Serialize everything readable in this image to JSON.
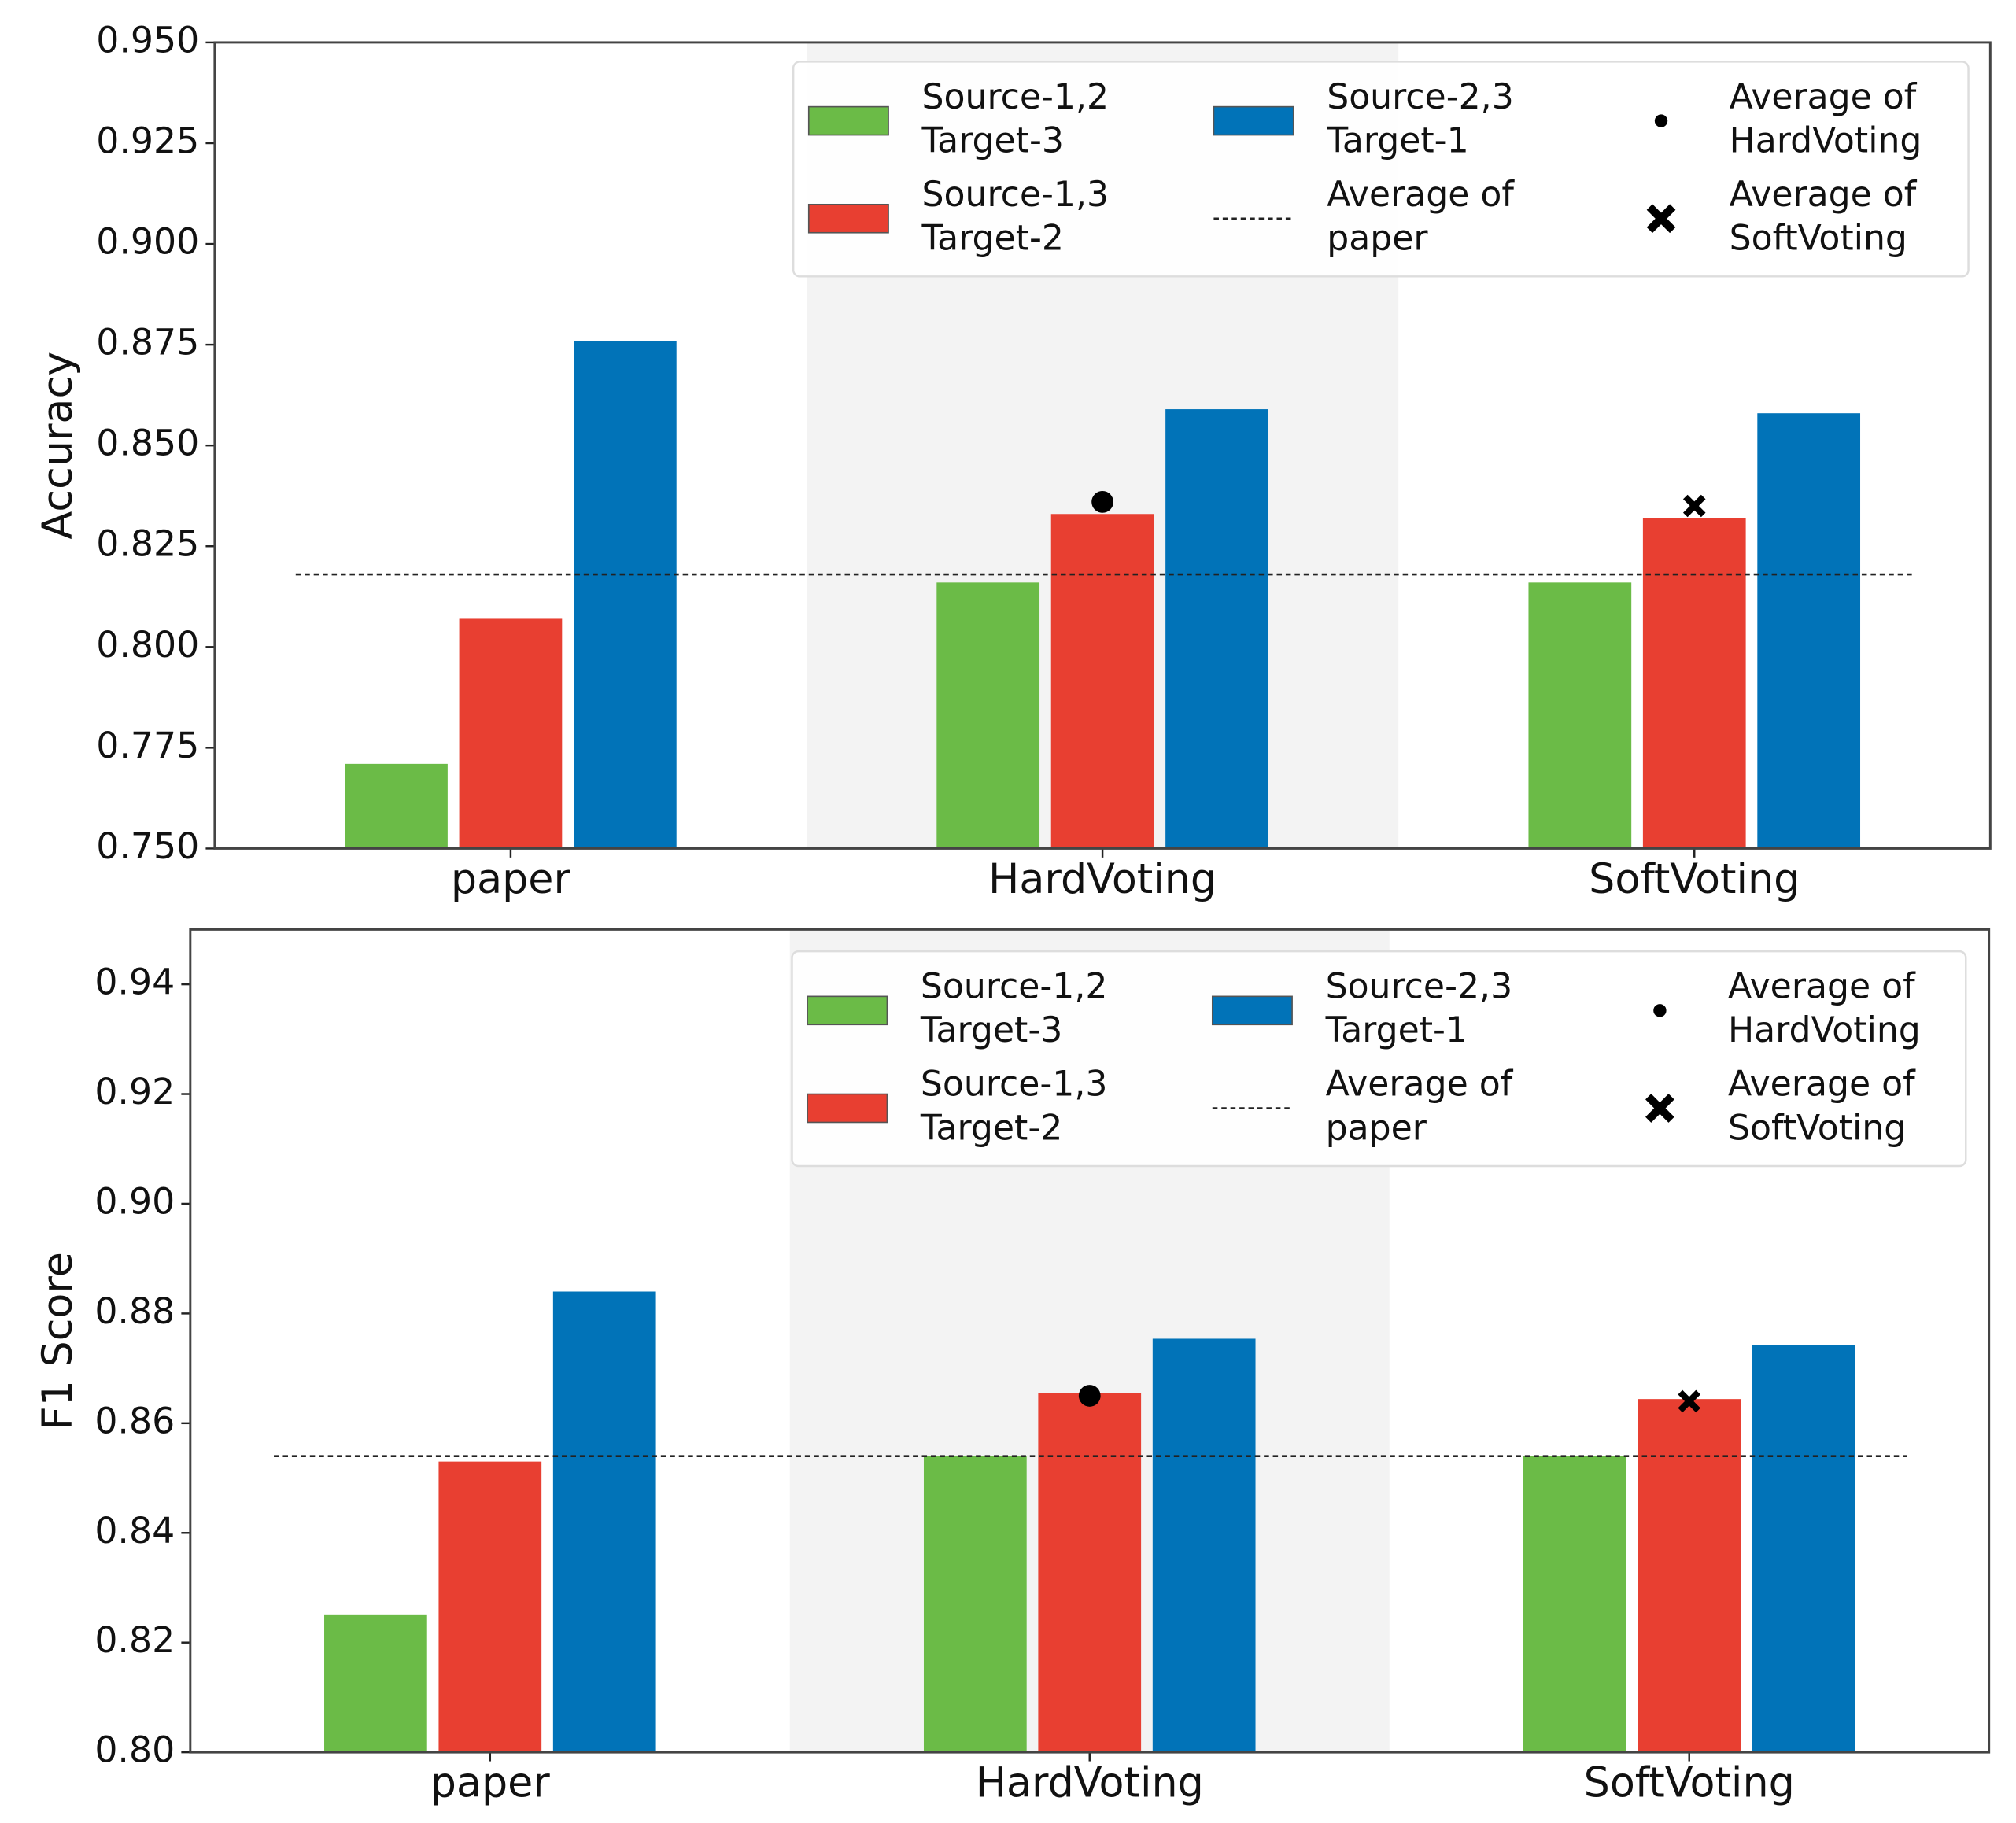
{
  "chart_data": [
    {
      "type": "bar",
      "ylabel": "Accuracy",
      "categories": [
        "paper",
        "HardVoting",
        "SoftVoting"
      ],
      "series": [
        {
          "name": "Source-1,2\nTarget-3",
          "color": "#6bbb47",
          "values": [
            0.771,
            0.816,
            0.816
          ]
        },
        {
          "name": "Source-1,3\nTarget-2",
          "color": "#e83f31",
          "values": [
            0.807,
            0.833,
            0.832
          ]
        },
        {
          "name": "Source-2,3\nTarget-1",
          "color": "#0173b8",
          "values": [
            0.876,
            0.859,
            0.858
          ]
        }
      ],
      "reference_line": {
        "name": "Average of\npaper",
        "value": 0.818
      },
      "points": [
        {
          "name": "Average of\nHardVoting",
          "x": "HardVoting",
          "value": 0.836,
          "marker": "circle"
        },
        {
          "name": "Average of\nSoftVoting",
          "x": "SoftVoting",
          "value": 0.835,
          "marker": "x"
        }
      ],
      "ylim": [
        0.75,
        0.95
      ],
      "yticks": [
        {
          "value": 0.75,
          "label": "0.750"
        },
        0.775,
        {
          "value": 0.8,
          "label": "0.800"
        },
        0.825,
        {
          "value": 0.85,
          "label": "0.850"
        },
        0.875,
        {
          "value": 0.9,
          "label": "0.900"
        },
        0.925,
        {
          "value": 0.95,
          "label": "0.950"
        }
      ],
      "legend": "upper right"
    },
    {
      "type": "bar",
      "ylabel": "F1 Score",
      "categories": [
        "paper",
        "HardVoting",
        "SoftVoting"
      ],
      "series": [
        {
          "name": "Source-1,2\nTarget-3",
          "color": "#6bbb47",
          "values": [
            0.825,
            0.854,
            0.854
          ]
        },
        {
          "name": "Source-1,3\nTarget-2",
          "color": "#e83f31",
          "values": [
            0.853,
            0.8655,
            0.8644
          ]
        },
        {
          "name": "Source-2,3\nTarget-1",
          "color": "#0173b8",
          "values": [
            0.884,
            0.8754,
            0.8742
          ]
        }
      ],
      "reference_line": {
        "name": "Average of\npaper",
        "value": 0.854
      },
      "points": [
        {
          "name": "Average of\nHardVoting",
          "x": "HardVoting",
          "value": 0.865,
          "marker": "circle"
        },
        {
          "name": "Average of\nSoftVoting",
          "x": "SoftVoting",
          "value": 0.864,
          "marker": "x"
        }
      ],
      "ylim": [
        0.8,
        0.95
      ],
      "yticks": [
        {
          "value": 0.8,
          "label": "0.80"
        },
        0.82,
        0.84,
        0.86,
        0.88,
        {
          "value": 0.9,
          "label": "0.90"
        },
        0.92,
        0.94
      ],
      "legend": "upper right"
    }
  ]
}
